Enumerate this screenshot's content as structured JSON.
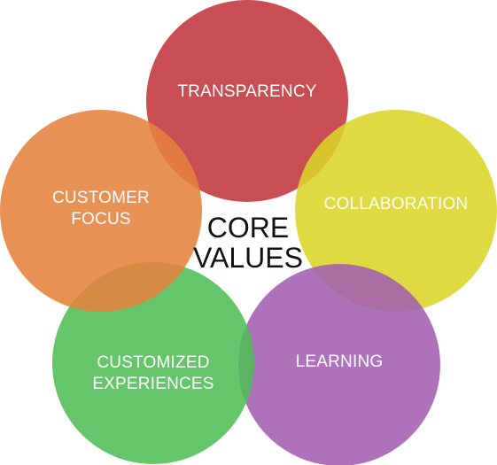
{
  "center_label": "CORE\nVALUES",
  "values": [
    {
      "label": "TRANSPARENCY",
      "color": "#c2363c"
    },
    {
      "label": "COLLABORATION",
      "color": "#dcd528"
    },
    {
      "label": "LEARNING",
      "color": "#a25fb0"
    },
    {
      "label": "CUSTOMIZED\nEXPERIENCES",
      "color": "#4fbd55"
    },
    {
      "label": "CUSTOMER\nFOCUS",
      "color": "#e4823d"
    }
  ]
}
